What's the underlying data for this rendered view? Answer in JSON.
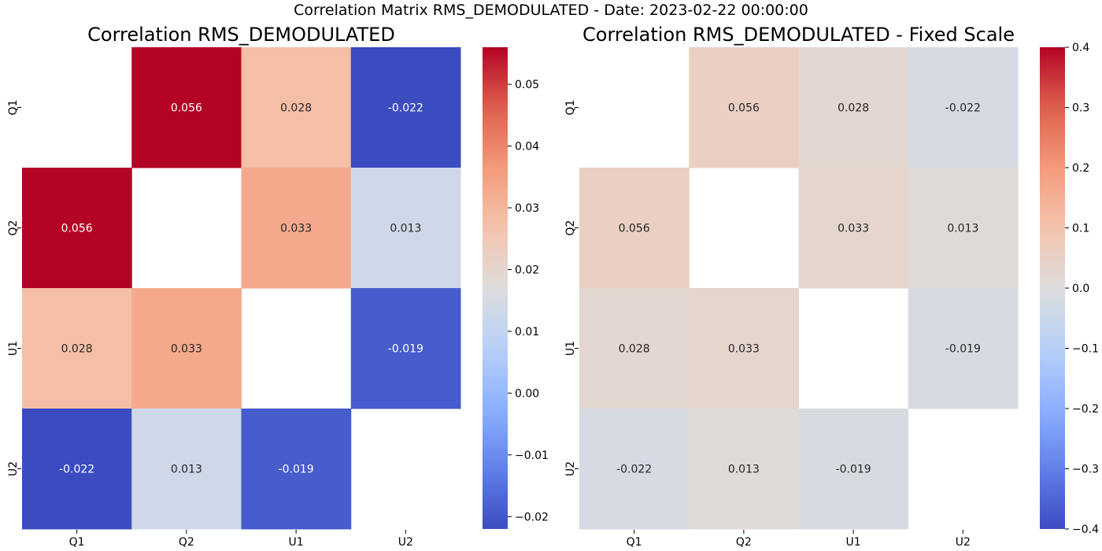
{
  "suptitle": "Correlation Matrix RMS_DEMODULATED - Date: 2023-02-22 00:00:00",
  "chart_data": [
    {
      "type": "heatmap",
      "title": "Correlation RMS_DEMODULATED",
      "row_labels": [
        "Q1",
        "Q2",
        "U1",
        "U2"
      ],
      "col_labels": [
        "Q1",
        "Q2",
        "U1",
        "U2"
      ],
      "values": [
        [
          null,
          0.056,
          0.028,
          -0.022
        ],
        [
          0.056,
          null,
          0.033,
          0.013
        ],
        [
          0.028,
          0.033,
          null,
          -0.019
        ],
        [
          -0.022,
          0.013,
          -0.019,
          null
        ]
      ],
      "value_labels": [
        [
          "",
          "0.056",
          "0.028",
          "-0.022"
        ],
        [
          "0.056",
          "",
          "0.033",
          "0.013"
        ],
        [
          "0.028",
          "0.033",
          "",
          "-0.019"
        ],
        [
          "-0.022",
          "0.013",
          "-0.019",
          ""
        ]
      ],
      "colormap": "coolwarm",
      "vmin": -0.022,
      "vmax": 0.056,
      "colorbar_ticks": [
        -0.02,
        -0.01,
        0.0,
        0.01,
        0.02,
        0.03,
        0.04,
        0.05
      ],
      "colorbar_tick_labels": [
        "−0.02",
        "−0.01",
        "0.00",
        "0.01",
        "0.02",
        "0.03",
        "0.04",
        "0.05"
      ]
    },
    {
      "type": "heatmap",
      "title": "Correlation RMS_DEMODULATED - Fixed Scale",
      "row_labels": [
        "Q1",
        "Q2",
        "U1",
        "U2"
      ],
      "col_labels": [
        "Q1",
        "Q2",
        "U1",
        "U2"
      ],
      "values": [
        [
          null,
          0.056,
          0.028,
          -0.022
        ],
        [
          0.056,
          null,
          0.033,
          0.013
        ],
        [
          0.028,
          0.033,
          null,
          -0.019
        ],
        [
          -0.022,
          0.013,
          -0.019,
          null
        ]
      ],
      "value_labels": [
        [
          "",
          "0.056",
          "0.028",
          "-0.022"
        ],
        [
          "0.056",
          "",
          "0.033",
          "0.013"
        ],
        [
          "0.028",
          "0.033",
          "",
          "-0.019"
        ],
        [
          "-0.022",
          "0.013",
          "-0.019",
          ""
        ]
      ],
      "colormap": "coolwarm",
      "vmin": -0.4,
      "vmax": 0.4,
      "colorbar_ticks": [
        -0.4,
        -0.3,
        -0.2,
        -0.1,
        0.0,
        0.1,
        0.2,
        0.3,
        0.4
      ],
      "colorbar_tick_labels": [
        "−0.4",
        "−0.3",
        "−0.2",
        "−0.1",
        "0.0",
        "0.1",
        "0.2",
        "0.3",
        "0.4"
      ]
    }
  ]
}
